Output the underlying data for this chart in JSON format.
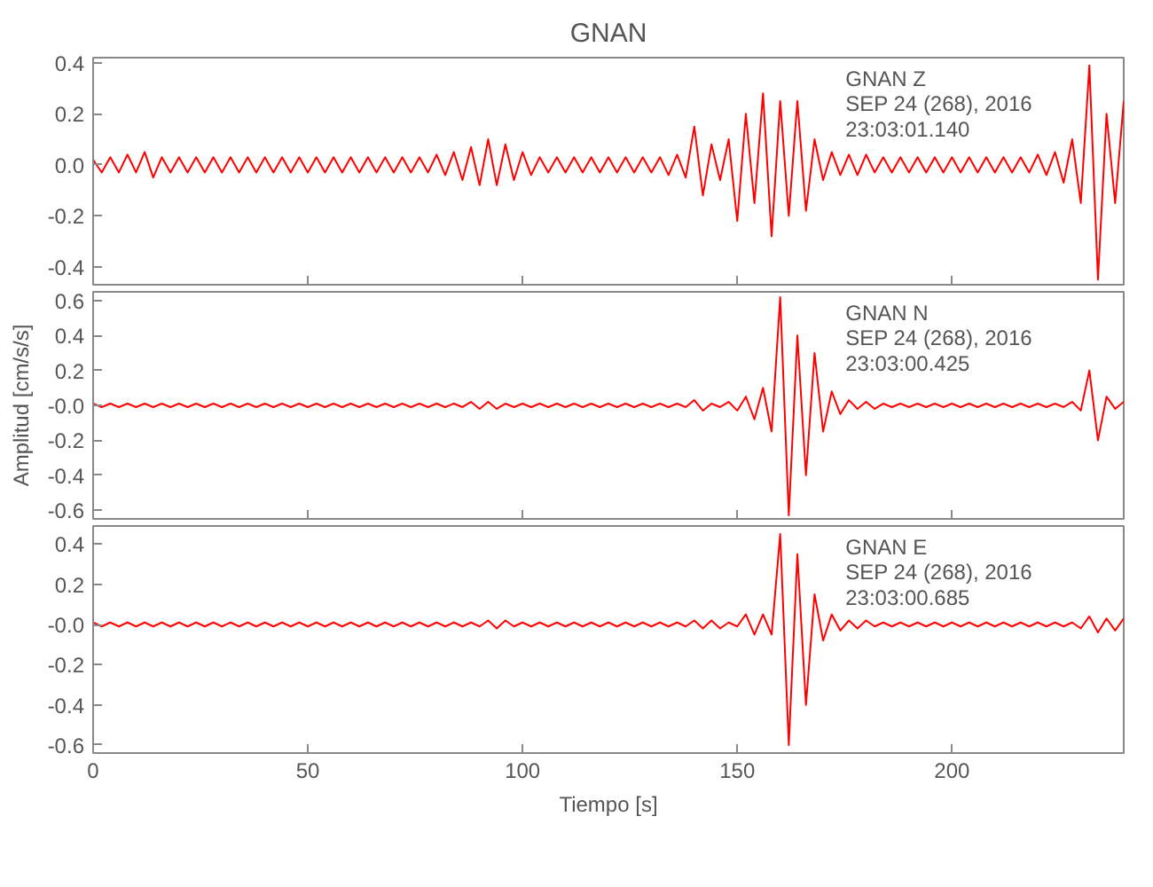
{
  "chart_data": [
    {
      "type": "line",
      "title": "GNAN",
      "annotations": [
        "GNAN   Z",
        "SEP 24 (268), 2016",
        "23:03:01.140"
      ],
      "xlim": [
        0,
        240
      ],
      "ylim": [
        -0.47,
        0.42
      ],
      "yticks": [
        {
          "value": -0.4,
          "label": "-0.4"
        },
        {
          "value": -0.2,
          "label": "-0.2"
        },
        {
          "value": 0,
          "label": "0.0"
        },
        {
          "value": 0.2,
          "label": "0.2"
        },
        {
          "value": 0.4,
          "label": "0.4"
        }
      ],
      "xticks": [
        0,
        50,
        100,
        150,
        200
      ],
      "tick_labels": "y",
      "grid": false,
      "line_style": "solid",
      "x": [
        0,
        2,
        4,
        6,
        8,
        10,
        12,
        14,
        16,
        18,
        20,
        22,
        24,
        26,
        28,
        30,
        32,
        34,
        36,
        38,
        40,
        42,
        44,
        46,
        48,
        50,
        52,
        54,
        56,
        58,
        60,
        62,
        64,
        66,
        68,
        70,
        72,
        74,
        76,
        78,
        80,
        82,
        84,
        86,
        88,
        90,
        92,
        94,
        96,
        98,
        100,
        102,
        104,
        106,
        108,
        110,
        112,
        114,
        116,
        118,
        120,
        122,
        124,
        126,
        128,
        130,
        132,
        134,
        136,
        138,
        140,
        142,
        144,
        146,
        148,
        150,
        152,
        154,
        156,
        158,
        160,
        162,
        164,
        166,
        168,
        170,
        172,
        174,
        176,
        178,
        180,
        182,
        184,
        186,
        188,
        190,
        192,
        194,
        196,
        198,
        200,
        202,
        204,
        206,
        208,
        210,
        212,
        214,
        216,
        218,
        220,
        222,
        224,
        226,
        228,
        230,
        232,
        234,
        236,
        238,
        240
      ],
      "series": [
        {
          "color": "#ff0000",
          "values": [
            0.02,
            -0.03,
            0.03,
            -0.03,
            0.04,
            -0.03,
            0.05,
            -0.05,
            0.03,
            -0.03,
            0.03,
            -0.03,
            0.03,
            -0.03,
            0.03,
            -0.03,
            0.03,
            -0.03,
            0.03,
            -0.03,
            0.03,
            -0.03,
            0.03,
            -0.03,
            0.03,
            -0.03,
            0.03,
            -0.03,
            0.03,
            -0.03,
            0.03,
            -0.03,
            0.03,
            -0.03,
            0.03,
            -0.03,
            0.03,
            -0.03,
            0.03,
            -0.03,
            0.04,
            -0.04,
            0.05,
            -0.06,
            0.07,
            -0.08,
            0.1,
            -0.08,
            0.08,
            -0.06,
            0.05,
            -0.04,
            0.03,
            -0.03,
            0.03,
            -0.03,
            0.03,
            -0.03,
            0.03,
            -0.03,
            0.03,
            -0.03,
            0.03,
            -0.03,
            0.03,
            -0.03,
            0.03,
            -0.04,
            0.04,
            -0.05,
            0.15,
            -0.12,
            0.08,
            -0.06,
            0.1,
            -0.22,
            0.2,
            -0.15,
            0.28,
            -0.28,
            0.25,
            -0.2,
            0.25,
            -0.18,
            0.1,
            -0.06,
            0.05,
            -0.04,
            0.04,
            -0.04,
            0.04,
            -0.03,
            0.03,
            -0.03,
            0.03,
            -0.03,
            0.03,
            -0.03,
            0.03,
            -0.03,
            0.03,
            -0.03,
            0.03,
            -0.03,
            0.03,
            -0.03,
            0.03,
            -0.03,
            0.03,
            -0.03,
            0.04,
            -0.04,
            0.05,
            -0.07,
            0.1,
            -0.15,
            0.39,
            -0.45,
            0.2,
            -0.15,
            0.25
          ]
        }
      ]
    },
    {
      "type": "line",
      "ylabel": "Amplitud [cm/s/s]",
      "annotations": [
        "GNAN   N",
        "SEP 24 (268), 2016",
        "23:03:00.425"
      ],
      "xlim": [
        0,
        240
      ],
      "ylim": [
        -0.65,
        0.65
      ],
      "yticks": [
        {
          "value": -0.6,
          "label": "-0.6"
        },
        {
          "value": -0.4,
          "label": "-0.4"
        },
        {
          "value": -0.2,
          "label": "-0.2"
        },
        {
          "value": 0,
          "label": "-0.0"
        },
        {
          "value": 0.2,
          "label": "0.2"
        },
        {
          "value": 0.4,
          "label": "0.4"
        },
        {
          "value": 0.6,
          "label": "0.6"
        }
      ],
      "xticks": [
        0,
        50,
        100,
        150,
        200
      ],
      "tick_labels": "y",
      "grid": false,
      "line_style": "solid",
      "x": [
        0,
        2,
        4,
        6,
        8,
        10,
        12,
        14,
        16,
        18,
        20,
        22,
        24,
        26,
        28,
        30,
        32,
        34,
        36,
        38,
        40,
        42,
        44,
        46,
        48,
        50,
        52,
        54,
        56,
        58,
        60,
        62,
        64,
        66,
        68,
        70,
        72,
        74,
        76,
        78,
        80,
        82,
        84,
        86,
        88,
        90,
        92,
        94,
        96,
        98,
        100,
        102,
        104,
        106,
        108,
        110,
        112,
        114,
        116,
        118,
        120,
        122,
        124,
        126,
        128,
        130,
        132,
        134,
        136,
        138,
        140,
        142,
        144,
        146,
        148,
        150,
        152,
        154,
        156,
        158,
        160,
        162,
        164,
        166,
        168,
        170,
        172,
        174,
        176,
        178,
        180,
        182,
        184,
        186,
        188,
        190,
        192,
        194,
        196,
        198,
        200,
        202,
        204,
        206,
        208,
        210,
        212,
        214,
        216,
        218,
        220,
        222,
        224,
        226,
        228,
        230,
        232,
        234,
        236,
        238,
        240
      ],
      "series": [
        {
          "color": "#ff0000",
          "values": [
            0.01,
            -0.01,
            0.01,
            -0.01,
            0.01,
            -0.01,
            0.01,
            -0.01,
            0.01,
            -0.01,
            0.01,
            -0.01,
            0.01,
            -0.01,
            0.01,
            -0.01,
            0.01,
            -0.01,
            0.01,
            -0.01,
            0.01,
            -0.01,
            0.01,
            -0.01,
            0.01,
            -0.01,
            0.01,
            -0.01,
            0.01,
            -0.01,
            0.01,
            -0.01,
            0.01,
            -0.01,
            0.01,
            -0.01,
            0.01,
            -0.01,
            0.01,
            -0.01,
            0.01,
            -0.01,
            0.01,
            -0.01,
            0.02,
            -0.02,
            0.02,
            -0.02,
            0.01,
            -0.01,
            0.01,
            -0.01,
            0.01,
            -0.01,
            0.01,
            -0.01,
            0.01,
            -0.01,
            0.01,
            -0.01,
            0.01,
            -0.01,
            0.01,
            -0.01,
            0.01,
            -0.01,
            0.01,
            -0.01,
            0.01,
            -0.01,
            0.03,
            -0.03,
            0.01,
            -0.01,
            0.02,
            -0.03,
            0.05,
            -0.08,
            0.1,
            -0.15,
            0.62,
            -0.63,
            0.4,
            -0.4,
            0.3,
            -0.15,
            0.08,
            -0.05,
            0.03,
            -0.02,
            0.02,
            -0.02,
            0.01,
            -0.01,
            0.01,
            -0.01,
            0.01,
            -0.01,
            0.01,
            -0.01,
            0.01,
            -0.01,
            0.01,
            -0.01,
            0.01,
            -0.01,
            0.01,
            -0.01,
            0.01,
            -0.01,
            0.01,
            -0.01,
            0.01,
            -0.01,
            0.02,
            -0.03,
            0.2,
            -0.2,
            0.05,
            -0.02,
            0.02
          ]
        }
      ]
    },
    {
      "type": "line",
      "xlabel": "Tiempo [s]",
      "annotations": [
        "GNAN   E",
        "SEP 24 (268), 2016",
        "23:03:00.685"
      ],
      "xlim": [
        0,
        240
      ],
      "ylim": [
        -0.64,
        0.49
      ],
      "yticks": [
        {
          "value": -0.6,
          "label": "-0.6"
        },
        {
          "value": -0.4,
          "label": "-0.4"
        },
        {
          "value": -0.2,
          "label": "-0.2"
        },
        {
          "value": 0,
          "label": "-0.0"
        },
        {
          "value": 0.2,
          "label": "0.2"
        },
        {
          "value": 0.4,
          "label": "0.4"
        }
      ],
      "xticks": [
        0,
        50,
        100,
        150,
        200
      ],
      "grid": false,
      "line_style": "solid",
      "x": [
        0,
        2,
        4,
        6,
        8,
        10,
        12,
        14,
        16,
        18,
        20,
        22,
        24,
        26,
        28,
        30,
        32,
        34,
        36,
        38,
        40,
        42,
        44,
        46,
        48,
        50,
        52,
        54,
        56,
        58,
        60,
        62,
        64,
        66,
        68,
        70,
        72,
        74,
        76,
        78,
        80,
        82,
        84,
        86,
        88,
        90,
        92,
        94,
        96,
        98,
        100,
        102,
        104,
        106,
        108,
        110,
        112,
        114,
        116,
        118,
        120,
        122,
        124,
        126,
        128,
        130,
        132,
        134,
        136,
        138,
        140,
        142,
        144,
        146,
        148,
        150,
        152,
        154,
        156,
        158,
        160,
        162,
        164,
        166,
        168,
        170,
        172,
        174,
        176,
        178,
        180,
        182,
        184,
        186,
        188,
        190,
        192,
        194,
        196,
        198,
        200,
        202,
        204,
        206,
        208,
        210,
        212,
        214,
        216,
        218,
        220,
        222,
        224,
        226,
        228,
        230,
        232,
        234,
        236,
        238,
        240
      ],
      "series": [
        {
          "color": "#ff0000",
          "values": [
            0.01,
            -0.01,
            0.01,
            -0.01,
            0.01,
            -0.01,
            0.01,
            -0.01,
            0.01,
            -0.01,
            0.01,
            -0.01,
            0.01,
            -0.01,
            0.01,
            -0.01,
            0.01,
            -0.01,
            0.01,
            -0.01,
            0.01,
            -0.01,
            0.01,
            -0.01,
            0.01,
            -0.01,
            0.01,
            -0.01,
            0.01,
            -0.01,
            0.01,
            -0.01,
            0.01,
            -0.01,
            0.01,
            -0.01,
            0.01,
            -0.01,
            0.01,
            -0.01,
            0.01,
            -0.01,
            0.01,
            -0.01,
            0.01,
            -0.01,
            0.02,
            -0.02,
            0.02,
            -0.01,
            0.01,
            -0.01,
            0.01,
            -0.01,
            0.01,
            -0.01,
            0.01,
            -0.01,
            0.01,
            -0.01,
            0.01,
            -0.01,
            0.01,
            -0.01,
            0.01,
            -0.01,
            0.01,
            -0.01,
            0.01,
            -0.01,
            0.02,
            -0.02,
            0.02,
            -0.02,
            0.01,
            -0.01,
            0.05,
            -0.05,
            0.05,
            -0.05,
            0.45,
            -0.6,
            0.35,
            -0.4,
            0.15,
            -0.08,
            0.05,
            -0.03,
            0.02,
            -0.02,
            0.02,
            -0.01,
            0.01,
            -0.01,
            0.01,
            -0.01,
            0.01,
            -0.01,
            0.01,
            -0.01,
            0.01,
            -0.01,
            0.01,
            -0.01,
            0.01,
            -0.01,
            0.01,
            -0.01,
            0.01,
            -0.01,
            0.01,
            -0.01,
            0.01,
            -0.01,
            0.01,
            -0.02,
            0.04,
            -0.04,
            0.03,
            -0.03,
            0.03
          ]
        }
      ]
    }
  ]
}
